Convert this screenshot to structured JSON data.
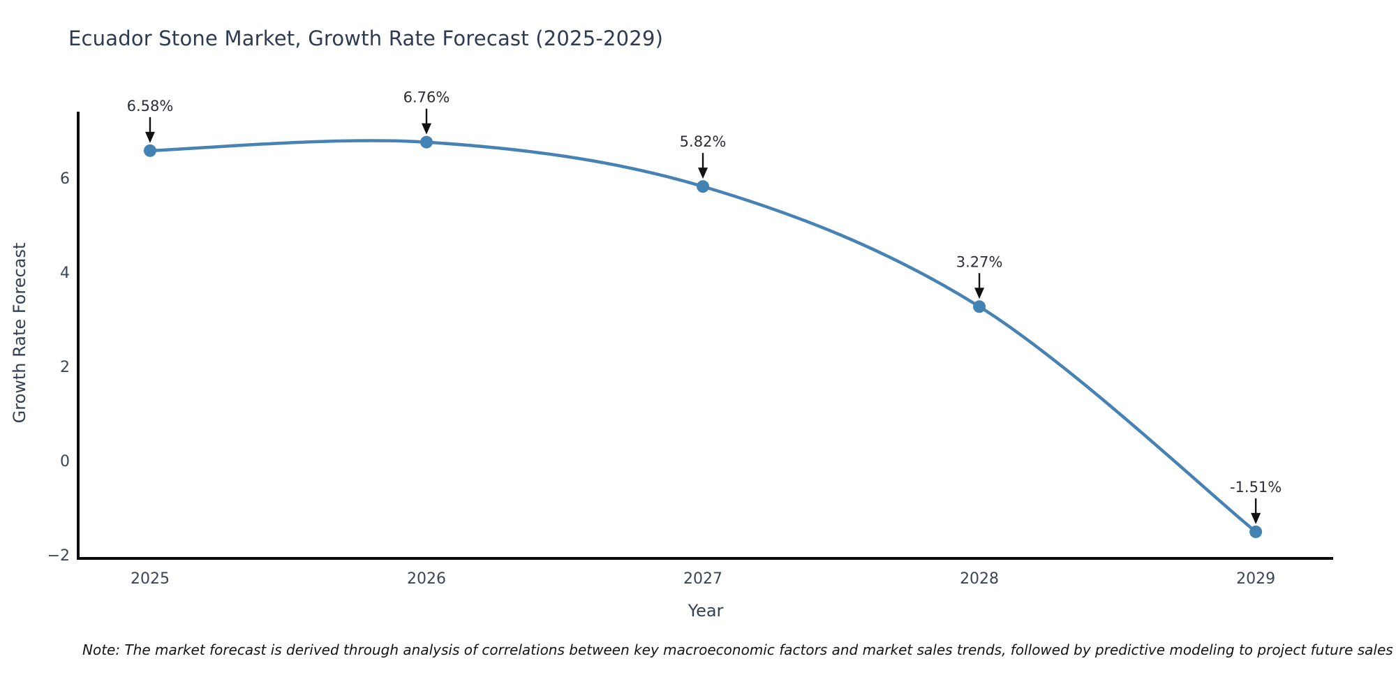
{
  "note": "Note: The market forecast is derived through analysis of correlations between key macroeconomic factors and market sales trends, followed by predictive modeling to project future sales",
  "chart_data": {
    "type": "line",
    "title": "Ecuador Stone Market, Growth Rate Forecast (2025-2029)",
    "xlabel": "Year",
    "ylabel": "Growth Rate Forecast",
    "x": [
      2025,
      2026,
      2027,
      2028,
      2029
    ],
    "values": [
      6.58,
      6.76,
      5.82,
      3.27,
      -1.51
    ],
    "point_labels": [
      "6.58%",
      "6.76%",
      "5.82%",
      "3.27%",
      "-1.51%"
    ],
    "xticklabels": [
      "2025",
      "2026",
      "2027",
      "2028",
      "2029"
    ],
    "yticks": [
      -2,
      0,
      2,
      4,
      6
    ],
    "yticklabels": [
      "−2",
      "0",
      "2",
      "4",
      "6"
    ],
    "xlim": [
      2024.74,
      2029.28
    ],
    "ylim": [
      -2.074,
      7.407
    ],
    "grid": false,
    "legend": null,
    "line_color": "#4682b4",
    "marker_color": "#4383b4",
    "spine_color": "#0a0a0a",
    "tick_color": "#3a4556",
    "annotation_color": "#2b2e35",
    "arrow_color": "#111111"
  }
}
